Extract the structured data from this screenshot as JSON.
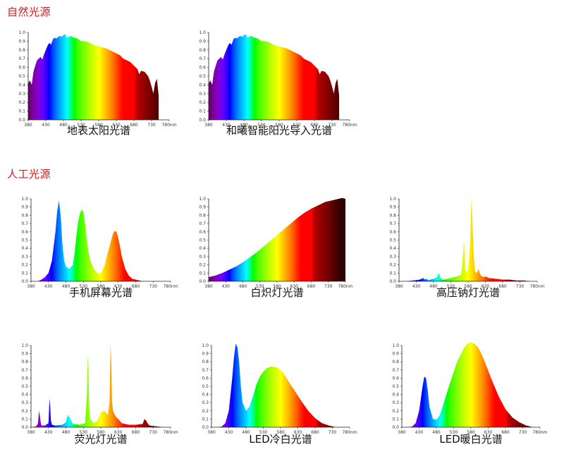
{
  "sections": [
    {
      "title": "自然光源"
    },
    {
      "title": "人工光源"
    }
  ],
  "chart_data": [
    {
      "type": "area",
      "title": "地表太阳光谱",
      "x_ticks": [
        "380",
        "430",
        "480",
        "530",
        "580",
        "630",
        "680",
        "730",
        "780nm"
      ],
      "y_ticks": [
        "0.0",
        "0.1",
        "0.2",
        "0.3",
        "0.4",
        "0.5",
        "0.6",
        "0.7",
        "0.8",
        "0.9",
        "1.0"
      ],
      "xlim": [
        380,
        780
      ],
      "ylim": [
        0,
        1.0
      ],
      "x": [
        380,
        385,
        390,
        395,
        400,
        405,
        410,
        415,
        420,
        425,
        430,
        435,
        440,
        445,
        450,
        455,
        460,
        465,
        470,
        475,
        480,
        485,
        490,
        495,
        500,
        510,
        520,
        530,
        540,
        550,
        560,
        570,
        580,
        590,
        600,
        610,
        620,
        630,
        640,
        650,
        660,
        670,
        680,
        685,
        690,
        695,
        700,
        710,
        720,
        725,
        730,
        735,
        740,
        745,
        750
      ],
      "y": [
        0.42,
        0.45,
        0.4,
        0.55,
        0.62,
        0.68,
        0.7,
        0.72,
        0.69,
        0.75,
        0.8,
        0.85,
        0.88,
        0.86,
        0.92,
        0.94,
        0.93,
        0.95,
        0.96,
        0.95,
        0.97,
        0.98,
        0.94,
        0.95,
        0.96,
        0.94,
        0.93,
        0.9,
        0.9,
        0.89,
        0.87,
        0.85,
        0.84,
        0.83,
        0.82,
        0.8,
        0.78,
        0.76,
        0.74,
        0.7,
        0.68,
        0.66,
        0.62,
        0.6,
        0.58,
        0.52,
        0.56,
        0.55,
        0.5,
        0.45,
        0.38,
        0.3,
        0.42,
        0.47,
        0.28
      ]
    },
    {
      "type": "area",
      "title": "和曦智能阳光导入光谱",
      "x_ticks": [
        "380",
        "430",
        "480",
        "530",
        "580",
        "630",
        "680",
        "730",
        "780nm"
      ],
      "y_ticks": [
        "0.0",
        "0.1",
        "0.2",
        "0.3",
        "0.4",
        "0.5",
        "0.6",
        "0.7",
        "0.8",
        "0.9",
        "1.0"
      ],
      "xlim": [
        380,
        780
      ],
      "ylim": [
        0,
        1.0
      ],
      "x": [
        380,
        385,
        390,
        395,
        400,
        405,
        410,
        415,
        420,
        425,
        430,
        435,
        440,
        445,
        450,
        455,
        460,
        465,
        470,
        475,
        480,
        485,
        490,
        495,
        500,
        510,
        520,
        530,
        540,
        550,
        560,
        570,
        580,
        590,
        600,
        610,
        620,
        630,
        640,
        650,
        660,
        670,
        680,
        685,
        690,
        695,
        700,
        710,
        720,
        725,
        730,
        735,
        740,
        745,
        750
      ],
      "y": [
        0.42,
        0.45,
        0.4,
        0.55,
        0.62,
        0.68,
        0.7,
        0.72,
        0.69,
        0.75,
        0.8,
        0.85,
        0.88,
        0.86,
        0.92,
        0.94,
        0.93,
        0.95,
        0.96,
        0.95,
        0.97,
        0.98,
        0.94,
        0.95,
        0.96,
        0.94,
        0.93,
        0.9,
        0.9,
        0.89,
        0.87,
        0.85,
        0.84,
        0.83,
        0.82,
        0.8,
        0.78,
        0.76,
        0.74,
        0.7,
        0.68,
        0.66,
        0.62,
        0.6,
        0.58,
        0.52,
        0.56,
        0.55,
        0.5,
        0.45,
        0.38,
        0.3,
        0.42,
        0.47,
        0.28
      ]
    },
    {
      "type": "area",
      "title": "手机屏幕光谱",
      "x_ticks": [
        "380",
        "430",
        "480",
        "530",
        "580",
        "630",
        "680",
        "730",
        "780nm"
      ],
      "y_ticks": [
        "0.0",
        "0.1",
        "0.2",
        "0.3",
        "0.4",
        "0.5",
        "0.6",
        "0.7",
        "0.8",
        "0.9",
        "1.0"
      ],
      "xlim": [
        380,
        780
      ],
      "ylim": [
        0,
        1.0
      ],
      "x": [
        400,
        410,
        420,
        430,
        440,
        450,
        455,
        460,
        465,
        470,
        475,
        480,
        490,
        500,
        505,
        510,
        515,
        520,
        525,
        530,
        535,
        540,
        545,
        550,
        560,
        570,
        575,
        580,
        590,
        600,
        610,
        615,
        620,
        625,
        630,
        635,
        640,
        650,
        660,
        670,
        680,
        690,
        700
      ],
      "y": [
        0.0,
        0.02,
        0.05,
        0.1,
        0.25,
        0.6,
        0.85,
        0.98,
        0.8,
        0.45,
        0.25,
        0.18,
        0.15,
        0.2,
        0.35,
        0.55,
        0.72,
        0.82,
        0.87,
        0.84,
        0.7,
        0.5,
        0.35,
        0.25,
        0.15,
        0.1,
        0.09,
        0.1,
        0.18,
        0.35,
        0.5,
        0.58,
        0.61,
        0.6,
        0.52,
        0.42,
        0.3,
        0.15,
        0.07,
        0.03,
        0.02,
        0.01,
        0.0
      ]
    },
    {
      "type": "area",
      "title": "白炽灯光谱",
      "x_ticks": [
        "380",
        "430",
        "480",
        "530",
        "580",
        "630",
        "680",
        "730",
        "780nm"
      ],
      "y_ticks": [
        "0.0",
        "0.1",
        "0.2",
        "0.3",
        "0.4",
        "0.5",
        "0.6",
        "0.7",
        "0.8",
        "0.9",
        "1.0"
      ],
      "xlim": [
        380,
        780
      ],
      "ylim": [
        0,
        1.0
      ],
      "x": [
        380,
        400,
        420,
        440,
        460,
        480,
        500,
        520,
        540,
        560,
        580,
        600,
        620,
        640,
        660,
        680,
        700,
        720,
        740,
        760,
        770,
        780
      ],
      "y": [
        0.05,
        0.07,
        0.1,
        0.14,
        0.18,
        0.23,
        0.29,
        0.35,
        0.42,
        0.49,
        0.56,
        0.63,
        0.7,
        0.77,
        0.83,
        0.88,
        0.92,
        0.96,
        0.98,
        1.0,
        1.01,
        1.0
      ]
    },
    {
      "type": "area",
      "title": "高压钠灯光谱",
      "x_ticks": [
        "380",
        "430",
        "480",
        "530",
        "580",
        "630",
        "680",
        "730",
        "780nm"
      ],
      "y_ticks": [
        "0.0",
        "0.1",
        "0.2",
        "0.3",
        "0.4",
        "0.5",
        "0.6",
        "0.7",
        "0.8",
        "0.9",
        "1.0"
      ],
      "xlim": [
        380,
        780
      ],
      "ylim": [
        0,
        1.0
      ],
      "x": [
        400,
        420,
        440,
        450,
        455,
        460,
        465,
        470,
        480,
        490,
        495,
        500,
        505,
        510,
        520,
        540,
        560,
        565,
        568,
        570,
        572,
        575,
        580,
        585,
        588,
        590,
        592,
        595,
        598,
        600,
        605,
        610,
        615,
        620,
        625,
        630,
        640,
        660,
        680,
        700,
        720,
        740,
        760
      ],
      "y": [
        0.0,
        0.01,
        0.02,
        0.04,
        0.02,
        0.03,
        0.01,
        0.02,
        0.03,
        0.05,
        0.1,
        0.04,
        0.02,
        0.02,
        0.03,
        0.05,
        0.08,
        0.3,
        0.5,
        0.3,
        0.15,
        0.1,
        0.15,
        0.4,
        0.8,
        1.02,
        0.8,
        0.4,
        0.2,
        0.12,
        0.1,
        0.15,
        0.08,
        0.06,
        0.05,
        0.06,
        0.04,
        0.03,
        0.02,
        0.02,
        0.01,
        0.01,
        0.0
      ]
    },
    {
      "type": "area",
      "title": "荧光灯光谱",
      "x_ticks": [
        "380",
        "430",
        "480",
        "530",
        "580",
        "630",
        "680",
        "730",
        "780nm"
      ],
      "y_ticks": [
        "0.0",
        "0.1",
        "0.2",
        "0.3",
        "0.4",
        "0.5",
        "0.6",
        "0.7",
        "0.8",
        "0.9",
        "1.0"
      ],
      "xlim": [
        380,
        780
      ],
      "ylim": [
        0,
        1.0
      ],
      "x": [
        380,
        395,
        400,
        403,
        405,
        408,
        410,
        420,
        430,
        433,
        435,
        437,
        440,
        450,
        470,
        480,
        485,
        490,
        495,
        500,
        520,
        535,
        540,
        543,
        545,
        547,
        550,
        560,
        570,
        580,
        590,
        600,
        605,
        608,
        610,
        612,
        615,
        620,
        625,
        630,
        640,
        650,
        660,
        680,
        700,
        705,
        710,
        715,
        720,
        740,
        760
      ],
      "y": [
        0.0,
        0.01,
        0.05,
        0.2,
        0.15,
        0.05,
        0.02,
        0.02,
        0.05,
        0.35,
        0.25,
        0.08,
        0.03,
        0.02,
        0.03,
        0.06,
        0.15,
        0.12,
        0.08,
        0.04,
        0.03,
        0.05,
        0.4,
        0.9,
        0.6,
        0.2,
        0.1,
        0.05,
        0.08,
        0.18,
        0.2,
        0.15,
        0.3,
        1.02,
        0.8,
        0.3,
        0.2,
        0.15,
        0.12,
        0.1,
        0.05,
        0.04,
        0.03,
        0.03,
        0.04,
        0.1,
        0.08,
        0.04,
        0.02,
        0.01,
        0.0
      ]
    },
    {
      "type": "area",
      "title": "LED冷白光谱",
      "x_ticks": [
        "380",
        "430",
        "480",
        "530",
        "580",
        "630",
        "680",
        "730",
        "780nm"
      ],
      "y_ticks": [
        "0.0",
        "0.1",
        "0.2",
        "0.3",
        "0.4",
        "0.5",
        "0.6",
        "0.7",
        "0.8",
        "0.9",
        "1.0"
      ],
      "xlim": [
        380,
        780
      ],
      "ylim": [
        0,
        1.0
      ],
      "x": [
        400,
        410,
        420,
        430,
        440,
        445,
        450,
        455,
        460,
        465,
        470,
        480,
        490,
        500,
        510,
        520,
        530,
        540,
        550,
        560,
        570,
        580,
        590,
        600,
        620,
        640,
        660,
        680,
        700,
        720,
        740
      ],
      "y": [
        0.0,
        0.01,
        0.05,
        0.2,
        0.6,
        0.85,
        1.02,
        0.98,
        0.8,
        0.5,
        0.3,
        0.2,
        0.25,
        0.38,
        0.52,
        0.62,
        0.68,
        0.72,
        0.74,
        0.74,
        0.73,
        0.7,
        0.65,
        0.58,
        0.45,
        0.32,
        0.2,
        0.11,
        0.05,
        0.02,
        0.0
      ]
    },
    {
      "type": "area",
      "title": "LED暖白光谱",
      "x_ticks": [
        "380",
        "430",
        "480",
        "530",
        "580",
        "630",
        "680",
        "730",
        "780nm"
      ],
      "y_ticks": [
        "0.0",
        "0.1",
        "0.2",
        "0.3",
        "0.4",
        "0.5",
        "0.6",
        "0.7",
        "0.8",
        "0.9",
        "1.0"
      ],
      "xlim": [
        380,
        780
      ],
      "ylim": [
        0,
        1.0
      ],
      "x": [
        400,
        410,
        420,
        430,
        440,
        445,
        450,
        455,
        460,
        470,
        480,
        490,
        500,
        520,
        540,
        560,
        570,
        580,
        590,
        600,
        610,
        620,
        640,
        660,
        680,
        700,
        720,
        740,
        760
      ],
      "y": [
        0.0,
        0.01,
        0.05,
        0.2,
        0.5,
        0.62,
        0.6,
        0.45,
        0.25,
        0.1,
        0.09,
        0.15,
        0.28,
        0.55,
        0.8,
        0.97,
        1.02,
        1.04,
        1.02,
        0.98,
        0.9,
        0.8,
        0.58,
        0.38,
        0.22,
        0.12,
        0.06,
        0.02,
        0.0
      ]
    }
  ]
}
